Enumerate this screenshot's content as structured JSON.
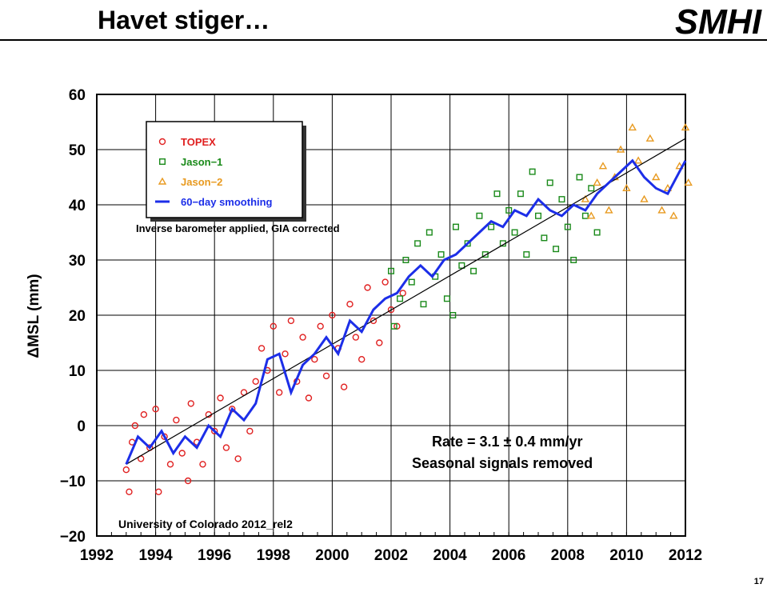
{
  "header": {
    "title": "Havet stiger…",
    "logo": "SMHI"
  },
  "page_number": "17",
  "chart_data": {
    "type": "scatter",
    "ylabel": "ΔMSL (mm)",
    "legend_note": "Inverse barometer applied, GIA corrected",
    "annotations": [
      "Rate = 3.1 ± 0.4 mm/yr",
      "Seasonal signals removed"
    ],
    "source": "University of Colorado 2012_rel2",
    "xlim": [
      1992,
      2012
    ],
    "ylim": [
      -20,
      60
    ],
    "xticks": [
      1992,
      1994,
      1996,
      1998,
      2000,
      2002,
      2004,
      2006,
      2008,
      2010,
      2012
    ],
    "yticks": [
      {
        "value": -20,
        "label": "−20"
      },
      {
        "value": -10,
        "label": "−10"
      },
      0,
      10,
      20,
      30,
      40,
      50,
      60
    ],
    "grid": true,
    "legend": "upper left",
    "trend": {
      "color": "#000000",
      "x": [
        1993,
        2012
      ],
      "values": [
        -7,
        52
      ]
    },
    "series": [
      {
        "name": "TOPEX",
        "color": "#e02020",
        "marker": "circle",
        "x": [
          1993.0,
          1993.1,
          1993.2,
          1993.3,
          1993.5,
          1993.6,
          1993.8,
          1994.0,
          1994.1,
          1994.3,
          1994.5,
          1994.7,
          1994.9,
          1995.1,
          1995.2,
          1995.4,
          1995.6,
          1995.8,
          1996.0,
          1996.2,
          1996.4,
          1996.6,
          1996.8,
          1997.0,
          1997.2,
          1997.4,
          1997.6,
          1997.8,
          1998.0,
          1998.2,
          1998.4,
          1998.6,
          1998.8,
          1999.0,
          1999.2,
          1999.4,
          1999.6,
          1999.8,
          2000.0,
          2000.2,
          2000.4,
          2000.6,
          2000.8,
          2001.0,
          2001.2,
          2001.4,
          2001.6,
          2001.8,
          2002.0,
          2002.2,
          2002.4
        ],
        "values": [
          -8,
          -12,
          -3,
          0,
          -6,
          2,
          -4,
          3,
          -12,
          -2,
          -7,
          1,
          -5,
          -10,
          4,
          -3,
          -7,
          2,
          -1,
          5,
          -4,
          3,
          -6,
          6,
          -1,
          8,
          14,
          10,
          18,
          6,
          13,
          19,
          8,
          16,
          5,
          12,
          18,
          9,
          20,
          14,
          7,
          22,
          16,
          12,
          25,
          19,
          15,
          26,
          21,
          18,
          24
        ]
      },
      {
        "name": "Jason−1",
        "color": "#1a8a1a",
        "marker": "square",
        "x": [
          2002.0,
          2002.1,
          2002.3,
          2002.5,
          2002.7,
          2002.9,
          2003.1,
          2003.3,
          2003.5,
          2003.7,
          2003.9,
          2004.1,
          2004.2,
          2004.4,
          2004.6,
          2004.8,
          2005.0,
          2005.2,
          2005.4,
          2005.6,
          2005.8,
          2006.0,
          2006.2,
          2006.4,
          2006.6,
          2006.8,
          2007.0,
          2007.2,
          2007.4,
          2007.6,
          2007.8,
          2008.0,
          2008.2,
          2008.4,
          2008.6,
          2008.8,
          2009.0
        ],
        "values": [
          28,
          18,
          23,
          30,
          26,
          33,
          22,
          35,
          27,
          31,
          23,
          20,
          36,
          29,
          33,
          28,
          38,
          31,
          36,
          42,
          33,
          39,
          35,
          42,
          31,
          46,
          38,
          34,
          44,
          32,
          41,
          36,
          30,
          45,
          38,
          43,
          35
        ]
      },
      {
        "name": "Jason−2",
        "color": "#e89a20",
        "marker": "triangle",
        "x": [
          2008.6,
          2008.8,
          2009.0,
          2009.2,
          2009.4,
          2009.6,
          2009.8,
          2010.0,
          2010.2,
          2010.4,
          2010.6,
          2010.8,
          2011.0,
          2011.2,
          2011.4,
          2011.6,
          2011.8,
          2012.0,
          2012.1
        ],
        "values": [
          41,
          38,
          44,
          47,
          39,
          45,
          50,
          43,
          54,
          48,
          41,
          52,
          45,
          39,
          43,
          38,
          47,
          54,
          44
        ]
      },
      {
        "name": "60−day smoothing",
        "color": "#1c2ee8",
        "marker": "line",
        "x": [
          1993.0,
          1993.4,
          1993.8,
          1994.2,
          1994.6,
          1995.0,
          1995.4,
          1995.8,
          1996.2,
          1996.6,
          1997.0,
          1997.4,
          1997.8,
          1998.2,
          1998.6,
          1999.0,
          1999.4,
          1999.8,
          2000.2,
          2000.6,
          2001.0,
          2001.4,
          2001.8,
          2002.2,
          2002.6,
          2003.0,
          2003.4,
          2003.8,
          2004.2,
          2004.6,
          2005.0,
          2005.4,
          2005.8,
          2006.2,
          2006.6,
          2007.0,
          2007.4,
          2007.8,
          2008.2,
          2008.6,
          2009.0,
          2009.4,
          2009.8,
          2010.2,
          2010.6,
          2011.0,
          2011.4,
          2011.8,
          2012.0
        ],
        "values": [
          -7,
          -2,
          -4,
          -1,
          -5,
          -2,
          -4,
          0,
          -2,
          3,
          1,
          4,
          12,
          13,
          6,
          11,
          13,
          16,
          13,
          19,
          17,
          21,
          23,
          24,
          27,
          29,
          27,
          30,
          31,
          33,
          35,
          37,
          36,
          39,
          38,
          41,
          39,
          38,
          40,
          39,
          42,
          44,
          46,
          48,
          45,
          43,
          42,
          46,
          48
        ]
      }
    ]
  }
}
